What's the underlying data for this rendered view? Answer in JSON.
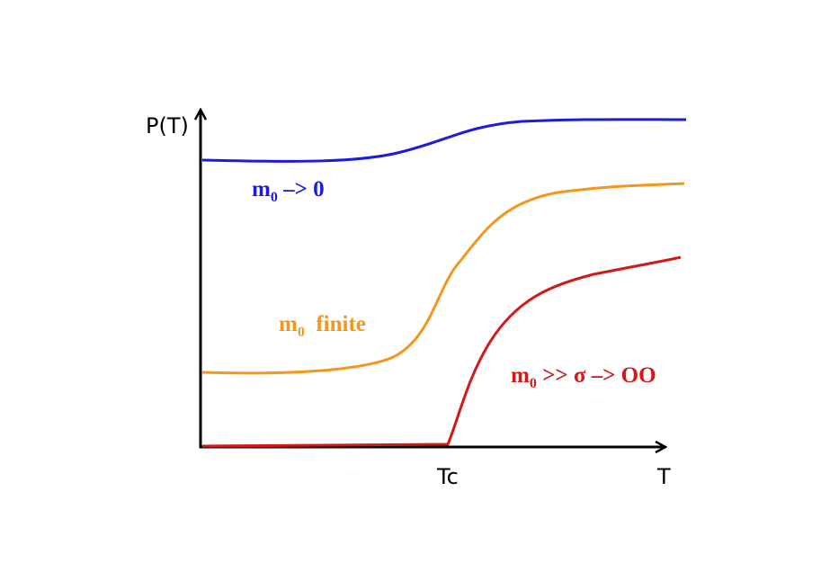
{
  "axes": {
    "y_label": "P(T)",
    "x_label": "T",
    "critical_label": "Tc"
  },
  "curves": [
    {
      "main": "m",
      "sub": "0",
      "rest": " –> 0"
    },
    {
      "main": "m",
      "sub": "0",
      "rest": "  finite"
    },
    {
      "main": "m",
      "sub": "0",
      "rest": " >> σ –> OO"
    }
  ]
}
